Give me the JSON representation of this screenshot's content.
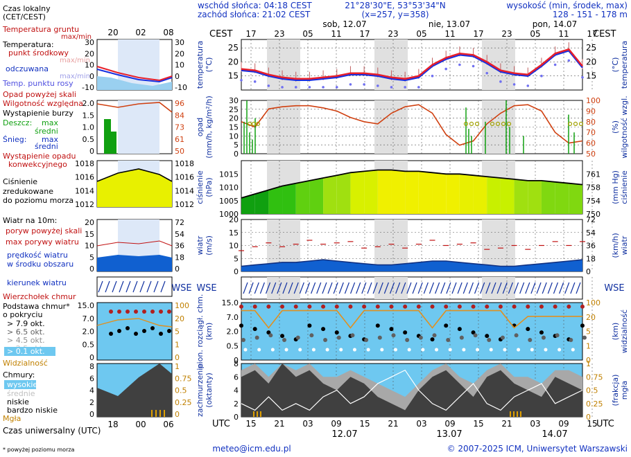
{
  "header": {
    "sunrise": "wschód słońca: 04:18 CEST",
    "sunset": "zachód słońca: 21:02 CEST",
    "coords": "21°28'30\"E, 53°53'34\"N",
    "grid": "(x=257, y=358)",
    "elev_title": "wysokość (min, środek, max)",
    "elev_values": "128 - 151 - 178 m",
    "day1": "sob, 12.07",
    "day2": "nie, 13.07",
    "day3": "pon, 14.07"
  },
  "timeaxis": {
    "top_label": "CEST",
    "top_ticks": [
      "17",
      "23",
      "05",
      "11",
      "17",
      "23",
      "05",
      "11",
      "17",
      "23",
      "05",
      "11",
      "17"
    ],
    "bottom_label": "UTC",
    "bottom_ticks": [
      "15",
      "21",
      "03",
      "09",
      "15",
      "21",
      "03",
      "09",
      "15",
      "21",
      "03",
      "09",
      "15"
    ],
    "bottom_dates": [
      "12.07",
      "13.07",
      "14.07"
    ]
  },
  "legend": {
    "local_time": "Czas lokalny",
    "local_time2": "(CET/CEST)",
    "local_ticks": [
      "20",
      "02",
      "08"
    ],
    "soil_temp": "Temperatura gruntu",
    "maxmin1": "max/min",
    "temperature": "Temperatura:",
    "mid_point": "punkt środkowy",
    "maxmin2": "max/min",
    "felt": "odczuwana",
    "maxmin3": "max/min",
    "dew": "Temp. punktu rosy",
    "precip_above": "Opad powyżej skali",
    "humidity": "Wilgotność względna",
    "storm": "Wystąpienie burzy",
    "rain": "Deszcz:",
    "max_a": "max",
    "mean_a": "średni",
    "snow": "Śnieg:",
    "max_b": "max",
    "mean_b": "średni",
    "precip_occ1": "Wystąpienie opadu",
    "precip_occ2": "konwekcyjnego",
    "pressure1": "Ciśnienie",
    "pressure2": "zredukowane",
    "pressure3": "do poziomu morza",
    "wind10": "Wiatr na 10m:",
    "gust_above": "poryw powyżej skali",
    "max_gust": "max porywy wiatru",
    "speed1": "prędkość wiatru",
    "speed2": "w środku obszaru",
    "wind_dir": "kierunek wiatru",
    "cb_top": "Wierzchołek chmur",
    "cloud_base1": "Podstawa chmur*",
    "cloud_base2": "o pokryciu",
    "okt79": "> 7.9 okt.",
    "okt65": "> 6.5 okt.",
    "okt45": "> 4.5 okt.",
    "okt25": "> 2.5 okt.",
    "okt01": "> 0.1 okt.",
    "visibility": "Widzialność",
    "clouds": "Chmury:",
    "high": "wysokie",
    "mid": "średnie",
    "low": "niskie",
    "vlow": "bardzo niskie",
    "fog": "Mgła",
    "utc_label": "Czas uniwersalny (UTC)",
    "utc_ticks": [
      "18",
      "00",
      "06"
    ],
    "footnote": "* powyżej poziomu morza"
  },
  "panels": {
    "temp": {
      "left": "temperatura",
      "left_unit": "(°C)",
      "right": "temperatura",
      "right_unit": "(°C)",
      "ticks": [
        "25",
        "20",
        "15"
      ]
    },
    "precip": {
      "left": "opad",
      "left_unit": "(mm/h, kg/m²/h)",
      "right": "wilgotność wzgl.",
      "right_unit": "(%)",
      "lticks": [
        "30",
        "25",
        "20",
        "15",
        "10",
        "5",
        "0"
      ],
      "rticks": [
        "100",
        "90",
        "80",
        "70",
        "60",
        "50"
      ]
    },
    "pressure": {
      "left": "ciśnienie",
      "left_unit": "(hPa)",
      "right": "ciśnienie",
      "right_unit": "(mm Hg)",
      "lticks": [
        "1015",
        "1010",
        "1005",
        "1000"
      ],
      "rticks": [
        "761",
        "758",
        "754",
        "750"
      ]
    },
    "wind": {
      "left": "wiatr",
      "left_unit": "(m/s)",
      "right": "wiatr",
      "right_unit": "(km/h)",
      "lticks": [
        "20",
        "15",
        "10",
        "5",
        "0"
      ],
      "rticks": [
        "72",
        "54",
        "36",
        "18",
        "0"
      ]
    },
    "cloudbase": {
      "left": "pion. rozciągł. chm.",
      "left_unit": "(km)",
      "right": "widzialność",
      "right_unit": "(km)",
      "lticks": [
        "15.0",
        "7.0",
        "2.0",
        "0.5",
        "0"
      ],
      "rticks": [
        "100",
        "20",
        "5",
        "1",
        "0"
      ]
    },
    "cloud": {
      "left": "zachmurzenie",
      "left_unit": "(oktanty)",
      "right": "mgła",
      "right_unit": "(frakcja)",
      "lticks": [
        "8",
        "6",
        "4",
        "2",
        "0"
      ],
      "rticks": [
        "1",
        "0.75",
        "0.5",
        "0.25",
        "0"
      ]
    }
  },
  "left_ticks": {
    "temp_l": [
      "30",
      "20",
      "10",
      "0",
      "-10"
    ],
    "temp_r": [
      "30",
      "20",
      "10",
      "0",
      "-10"
    ],
    "precip_l": [
      "2.0",
      "1.5",
      "1.0",
      "0.5",
      "0"
    ],
    "precip_r": [
      "96",
      "84",
      "73",
      "61",
      "50"
    ],
    "press_l": [
      "1018",
      "1016",
      "1014",
      "1012"
    ],
    "press_r": [
      "1018",
      "1016",
      "1014",
      "1012"
    ],
    "wind_l": [
      "20",
      "15",
      "10",
      "5",
      "0"
    ],
    "wind_r": [
      "72",
      "54",
      "36",
      "18",
      "0"
    ],
    "cb_l": [
      "15.0",
      "7.0",
      "2.0",
      "0.5",
      "0"
    ],
    "cb_r": [
      "100",
      "20",
      "5",
      "1",
      "0"
    ],
    "cl_l": [
      "8",
      "6",
      "4",
      "2",
      "0"
    ],
    "cl_r": [
      "1",
      "0.75",
      "0.5",
      "0.25",
      "0"
    ]
  },
  "footer": {
    "email": "meteo@icm.edu.pl",
    "copyright": "© 2007-2025 ICM, Uniwersytet Warszawski"
  },
  "colors": {
    "temp": "#e8202a",
    "felt": "#1830e0",
    "dew": "#5050e0",
    "humidity": "#d04010",
    "pressure": "#e8e800",
    "wind_fill": "#1060d0"
  },
  "chart_data": {
    "type": "line",
    "x_hours_utc": [
      15,
      18,
      21,
      0,
      3,
      6,
      9,
      12,
      15,
      18,
      21,
      0,
      3,
      6,
      9,
      12,
      15,
      18,
      21,
      0,
      3,
      6,
      9,
      12,
      15,
      18
    ],
    "series": [
      {
        "name": "temperatura",
        "unit": "°C",
        "values": [
          17.5,
          17,
          15.5,
          14.5,
          14,
          14,
          14.5,
          15,
          16,
          16,
          15.5,
          14.5,
          14,
          15,
          19,
          21.5,
          23,
          22.5,
          20,
          17,
          16,
          15.5,
          19,
          23,
          24.5,
          18.5
        ]
      },
      {
        "name": "odczuwana",
        "unit": "°C",
        "values": [
          17,
          16.5,
          15,
          14,
          13.5,
          13.5,
          14,
          14.5,
          15.5,
          15.5,
          15,
          14,
          13.5,
          14.5,
          18.5,
          21,
          22.5,
          22,
          19.5,
          16.5,
          15.5,
          15,
          18.5,
          22.5,
          24,
          18
        ]
      },
      {
        "name": "wilgotność wzgl.",
        "unit": "%",
        "values": [
          80,
          75,
          92,
          94,
          95,
          95,
          93,
          90,
          84,
          80,
          78,
          88,
          94,
          96,
          88,
          68,
          58,
          62,
          78,
          88,
          95,
          96,
          90,
          70,
          60,
          62
        ]
      },
      {
        "name": "ciśnienie",
        "unit": "hPa",
        "values": [
          1006,
          1007.5,
          1009,
          1010.5,
          1011.5,
          1012.5,
          1013.5,
          1014.5,
          1015.5,
          1016,
          1016.5,
          1016.5,
          1016,
          1016,
          1015.5,
          1015,
          1015,
          1014.5,
          1014,
          1013.5,
          1013,
          1012.5,
          1012.5,
          1012,
          1011.5,
          1011
        ]
      },
      {
        "name": "wiatr",
        "unit": "m/s",
        "values": [
          2,
          2.5,
          3,
          3.5,
          3.5,
          4,
          4.5,
          4,
          3.5,
          3,
          2.5,
          2.5,
          3,
          3.5,
          4,
          4,
          3.5,
          3,
          2.5,
          2,
          2,
          2.5,
          3,
          3.5,
          4,
          4.5
        ]
      }
    ],
    "ylim": [
      10,
      28
    ]
  }
}
